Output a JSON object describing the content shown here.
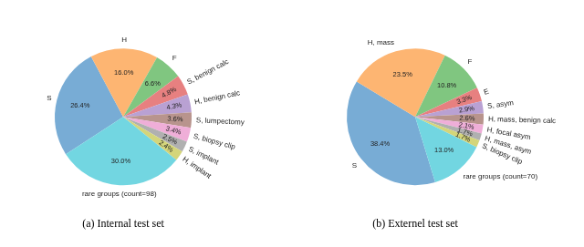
{
  "chart_data": [
    {
      "type": "pie",
      "title": "(a) Internal test set",
      "categories": [
        "S",
        "H",
        "F",
        "S, benign calc",
        "H, benign calc",
        "S, lumpectomy",
        "S, biopsy clip",
        "S, implant",
        "H, implant",
        "rare groups (count=98)"
      ],
      "values": [
        26.4,
        16.0,
        6.6,
        4.8,
        4.3,
        3.6,
        3.4,
        2.5,
        2.4,
        30.0
      ],
      "value_labels": [
        "26.4%",
        "16.0%",
        "6.6%",
        "4.8%",
        "4.3%",
        "3.6%",
        "3.4%",
        "2.5%",
        "2.4%",
        "30.0%"
      ],
      "colors": [
        "#78acd5",
        "#fdb572",
        "#80c680",
        "#e78080",
        "#b9a1d3",
        "#b8948d",
        "#efaed8",
        "#b0b0b0",
        "#d4d57a",
        "#72d6e1"
      ],
      "data_labels": true
    },
    {
      "type": "pie",
      "title": "(b) Externel test set",
      "categories": [
        "S",
        "H, mass",
        "F",
        "E",
        "S, asym",
        "H, mass, benign calc",
        "H, focal asym",
        "H, mass, asym",
        "S, biopsy clip",
        "rare groups (count=70)"
      ],
      "values": [
        38.4,
        23.5,
        10.8,
        3.3,
        2.9,
        2.6,
        2.1,
        1.7,
        1.7,
        13.0
      ],
      "value_labels": [
        "38.4%",
        "23.5%",
        "10.8%",
        "3.3%",
        "2.9%",
        "2.6%",
        "2.1%",
        "1.7%",
        "1.7%",
        "13.0%"
      ],
      "colors": [
        "#78acd5",
        "#fdb572",
        "#80c680",
        "#e78080",
        "#b9a1d3",
        "#b8948d",
        "#efaed8",
        "#b0b0b0",
        "#d4d57a",
        "#72d6e1"
      ],
      "data_labels": true
    }
  ]
}
